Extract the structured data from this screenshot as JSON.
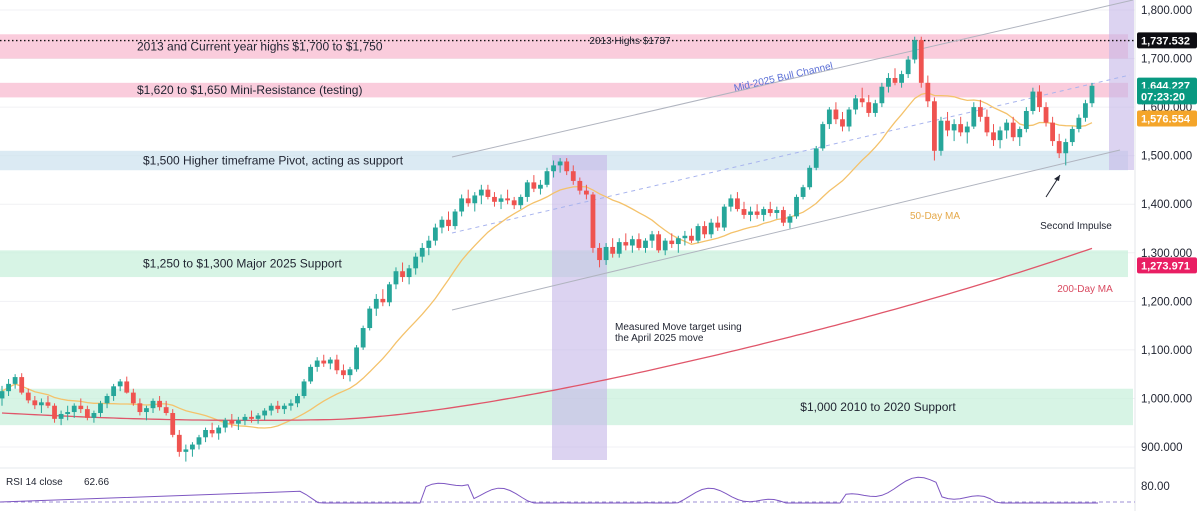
{
  "chart_data": {
    "type": "candlestick",
    "y_axis": {
      "range": [
        860,
        1820
      ],
      "ticks": [
        "1,800.000",
        "1,700.000",
        "1,600.000",
        "1,500.000",
        "1,400.000",
        "1,300.000",
        "1,200.000",
        "1,100.000",
        "1,000.000",
        "900.000"
      ],
      "tick_values": [
        1800,
        1700,
        1600,
        1500,
        1400,
        1300,
        1200,
        1100,
        1000,
        900
      ]
    },
    "price_badges": [
      {
        "text": "1,737.532",
        "value": 1737.532,
        "color": "#0d0d12"
      },
      {
        "text": "1,644.227",
        "value": 1644.227,
        "color": "#089981"
      },
      {
        "text": "07:23:20",
        "value": 1622,
        "color": "#089981"
      },
      {
        "text": "1,576.554",
        "value": 1576.554,
        "color": "#f4a52a"
      },
      {
        "text": "1,273.971",
        "value": 1273.971,
        "color": "#e91e63"
      }
    ],
    "zones": [
      {
        "label": "2013 and Current year highs $1,700 to $1,750",
        "from": 1700,
        "to": 1750,
        "color": "#f8bbd0"
      },
      {
        "label": "$1,620 to $1,650 Mini-Resistance (testing)",
        "from": 1620,
        "to": 1650,
        "color": "#f8bbd0"
      },
      {
        "label": "$1,500 Higher timeframe Pivot, acting as support",
        "from": 1470,
        "to": 1510,
        "color": "#cfe3ef"
      },
      {
        "label": "$1,250 to $1,300 Major 2025 Support",
        "from": 1250,
        "to": 1305,
        "color": "#c9f0dc"
      },
      {
        "label": "$1,000 2010 to 2020 Support",
        "from": 945,
        "to": 1020,
        "color": "#c9f0dc"
      }
    ],
    "highs_line": {
      "label": "2013 Highs $1737",
      "value": 1737
    },
    "annotations": {
      "channel": "Mid-2025 Bull Channel",
      "ma50": "50-Day MA",
      "ma200": "200-Day MA",
      "measured_move": [
        "Measured Move target using",
        "the April 2025 move"
      ],
      "second_impulse": "Second Impulse"
    },
    "indicator": {
      "label": "RSI 14 close",
      "value": "62.66",
      "tick": "80.00"
    },
    "colors": {
      "up": "#26a69a",
      "down": "#ef5350",
      "ma50": "#f4c26b",
      "ma200": "#e0566a",
      "projection": "#c4b5e8"
    },
    "candles": [
      [
        1000,
        1026,
        985,
        1015
      ],
      [
        1015,
        1040,
        1005,
        1030
      ],
      [
        1030,
        1050,
        1020,
        1044
      ],
      [
        1044,
        1052,
        1008,
        1012
      ],
      [
        1012,
        1020,
        990,
        996
      ],
      [
        996,
        1005,
        978,
        986
      ],
      [
        986,
        1000,
        970,
        992
      ],
      [
        992,
        1005,
        980,
        985
      ],
      [
        985,
        990,
        950,
        958
      ],
      [
        958,
        975,
        945,
        968
      ],
      [
        968,
        985,
        955,
        972
      ],
      [
        972,
        990,
        960,
        985
      ],
      [
        985,
        1000,
        970,
        978
      ],
      [
        978,
        985,
        955,
        960
      ],
      [
        960,
        975,
        950,
        970
      ],
      [
        970,
        995,
        962,
        990
      ],
      [
        990,
        1010,
        980,
        1005
      ],
      [
        1005,
        1030,
        995,
        1025
      ],
      [
        1025,
        1040,
        1015,
        1035
      ],
      [
        1035,
        1045,
        1010,
        1012
      ],
      [
        1012,
        1020,
        985,
        990
      ],
      [
        990,
        1000,
        965,
        972
      ],
      [
        972,
        985,
        955,
        980
      ],
      [
        980,
        1000,
        970,
        995
      ],
      [
        995,
        1005,
        975,
        982
      ],
      [
        982,
        995,
        965,
        970
      ],
      [
        970,
        978,
        920,
        925
      ],
      [
        925,
        935,
        880,
        890
      ],
      [
        890,
        905,
        870,
        895
      ],
      [
        895,
        910,
        880,
        905
      ],
      [
        905,
        925,
        895,
        920
      ],
      [
        920,
        940,
        910,
        935
      ],
      [
        935,
        950,
        920,
        928
      ],
      [
        928,
        945,
        915,
        940
      ],
      [
        940,
        960,
        930,
        955
      ],
      [
        955,
        968,
        940,
        948
      ],
      [
        948,
        962,
        935,
        955
      ],
      [
        955,
        968,
        945,
        962
      ],
      [
        962,
        975,
        950,
        958
      ],
      [
        958,
        970,
        948,
        965
      ],
      [
        965,
        980,
        955,
        975
      ],
      [
        975,
        990,
        965,
        985
      ],
      [
        985,
        995,
        970,
        978
      ],
      [
        978,
        990,
        968,
        985
      ],
      [
        985,
        998,
        975,
        990
      ],
      [
        990,
        1010,
        982,
        1005
      ],
      [
        1005,
        1040,
        1000,
        1035
      ],
      [
        1035,
        1070,
        1030,
        1065
      ],
      [
        1065,
        1085,
        1055,
        1078
      ],
      [
        1078,
        1090,
        1065,
        1072
      ],
      [
        1072,
        1085,
        1060,
        1080
      ],
      [
        1080,
        1090,
        1050,
        1058
      ],
      [
        1058,
        1070,
        1040,
        1048
      ],
      [
        1048,
        1065,
        1035,
        1060
      ],
      [
        1060,
        1110,
        1055,
        1105
      ],
      [
        1105,
        1150,
        1100,
        1145
      ],
      [
        1145,
        1190,
        1140,
        1185
      ],
      [
        1185,
        1215,
        1170,
        1205
      ],
      [
        1205,
        1225,
        1190,
        1198
      ],
      [
        1198,
        1240,
        1190,
        1235
      ],
      [
        1235,
        1270,
        1225,
        1262
      ],
      [
        1262,
        1280,
        1240,
        1250
      ],
      [
        1250,
        1275,
        1235,
        1268
      ],
      [
        1268,
        1300,
        1255,
        1292
      ],
      [
        1292,
        1320,
        1280,
        1310
      ],
      [
        1310,
        1335,
        1295,
        1325
      ],
      [
        1325,
        1360,
        1315,
        1352
      ],
      [
        1352,
        1375,
        1340,
        1368
      ],
      [
        1368,
        1385,
        1345,
        1355
      ],
      [
        1355,
        1390,
        1348,
        1385
      ],
      [
        1385,
        1420,
        1375,
        1412
      ],
      [
        1412,
        1430,
        1395,
        1402
      ],
      [
        1402,
        1425,
        1385,
        1418
      ],
      [
        1418,
        1440,
        1400,
        1430
      ],
      [
        1430,
        1440,
        1410,
        1415
      ],
      [
        1415,
        1425,
        1395,
        1405
      ],
      [
        1405,
        1420,
        1390,
        1412
      ],
      [
        1412,
        1430,
        1400,
        1408
      ],
      [
        1408,
        1415,
        1390,
        1398
      ],
      [
        1398,
        1420,
        1390,
        1415
      ],
      [
        1415,
        1450,
        1405,
        1445
      ],
      [
        1445,
        1460,
        1425,
        1432
      ],
      [
        1432,
        1450,
        1420,
        1440
      ],
      [
        1440,
        1475,
        1435,
        1468
      ],
      [
        1468,
        1490,
        1455,
        1480
      ],
      [
        1480,
        1495,
        1465,
        1488
      ],
      [
        1488,
        1495,
        1460,
        1468
      ],
      [
        1468,
        1480,
        1440,
        1448
      ],
      [
        1448,
        1455,
        1420,
        1428
      ],
      [
        1428,
        1440,
        1410,
        1420
      ],
      [
        1420,
        1425,
        1300,
        1310
      ],
      [
        1310,
        1320,
        1270,
        1285
      ],
      [
        1285,
        1320,
        1275,
        1312
      ],
      [
        1312,
        1330,
        1290,
        1298
      ],
      [
        1298,
        1330,
        1290,
        1322
      ],
      [
        1322,
        1340,
        1305,
        1315
      ],
      [
        1315,
        1335,
        1300,
        1328
      ],
      [
        1328,
        1340,
        1305,
        1310
      ],
      [
        1310,
        1330,
        1300,
        1325
      ],
      [
        1325,
        1345,
        1310,
        1338
      ],
      [
        1338,
        1345,
        1300,
        1305
      ],
      [
        1305,
        1330,
        1295,
        1325
      ],
      [
        1325,
        1340,
        1310,
        1318
      ],
      [
        1318,
        1335,
        1300,
        1330
      ],
      [
        1330,
        1345,
        1315,
        1335
      ],
      [
        1335,
        1350,
        1320,
        1325
      ],
      [
        1325,
        1360,
        1320,
        1355
      ],
      [
        1355,
        1365,
        1330,
        1338
      ],
      [
        1338,
        1370,
        1330,
        1362
      ],
      [
        1362,
        1375,
        1345,
        1352
      ],
      [
        1352,
        1400,
        1345,
        1395
      ],
      [
        1395,
        1420,
        1385,
        1412
      ],
      [
        1412,
        1425,
        1385,
        1390
      ],
      [
        1390,
        1405,
        1370,
        1378
      ],
      [
        1378,
        1395,
        1365,
        1385
      ],
      [
        1385,
        1400,
        1370,
        1378
      ],
      [
        1378,
        1395,
        1365,
        1390
      ],
      [
        1390,
        1405,
        1375,
        1382
      ],
      [
        1382,
        1395,
        1370,
        1388
      ],
      [
        1388,
        1395,
        1355,
        1362
      ],
      [
        1362,
        1380,
        1350,
        1375
      ],
      [
        1375,
        1420,
        1370,
        1415
      ],
      [
        1415,
        1440,
        1410,
        1435
      ],
      [
        1435,
        1480,
        1430,
        1475
      ],
      [
        1475,
        1520,
        1470,
        1515
      ],
      [
        1515,
        1570,
        1510,
        1565
      ],
      [
        1565,
        1600,
        1555,
        1595
      ],
      [
        1595,
        1610,
        1565,
        1575
      ],
      [
        1575,
        1590,
        1550,
        1560
      ],
      [
        1560,
        1600,
        1550,
        1595
      ],
      [
        1595,
        1625,
        1585,
        1618
      ],
      [
        1618,
        1640,
        1600,
        1610
      ],
      [
        1610,
        1625,
        1580,
        1588
      ],
      [
        1588,
        1615,
        1580,
        1608
      ],
      [
        1608,
        1650,
        1600,
        1642
      ],
      [
        1642,
        1670,
        1630,
        1660
      ],
      [
        1660,
        1680,
        1645,
        1650
      ],
      [
        1650,
        1675,
        1640,
        1668
      ],
      [
        1668,
        1705,
        1660,
        1698
      ],
      [
        1698,
        1745,
        1690,
        1738
      ],
      [
        1738,
        1745,
        1640,
        1650
      ],
      [
        1650,
        1665,
        1600,
        1612
      ],
      [
        1612,
        1620,
        1490,
        1510
      ],
      [
        1510,
        1580,
        1500,
        1572
      ],
      [
        1572,
        1590,
        1540,
        1552
      ],
      [
        1552,
        1575,
        1530,
        1565
      ],
      [
        1565,
        1580,
        1540,
        1548
      ],
      [
        1548,
        1570,
        1525,
        1560
      ],
      [
        1560,
        1610,
        1555,
        1600
      ],
      [
        1600,
        1615,
        1570,
        1580
      ],
      [
        1580,
        1595,
        1540,
        1548
      ],
      [
        1548,
        1565,
        1520,
        1532
      ],
      [
        1532,
        1560,
        1515,
        1552
      ],
      [
        1552,
        1575,
        1535,
        1568
      ],
      [
        1568,
        1580,
        1530,
        1538
      ],
      [
        1538,
        1560,
        1520,
        1555
      ],
      [
        1555,
        1600,
        1548,
        1592
      ],
      [
        1592,
        1640,
        1585,
        1632
      ],
      [
        1632,
        1645,
        1590,
        1600
      ],
      [
        1600,
        1610,
        1560,
        1568
      ],
      [
        1568,
        1580,
        1520,
        1530
      ],
      [
        1530,
        1545,
        1495,
        1505
      ],
      [
        1505,
        1535,
        1480,
        1528
      ],
      [
        1528,
        1560,
        1520,
        1555
      ],
      [
        1555,
        1585,
        1548,
        1578
      ],
      [
        1578,
        1615,
        1570,
        1608
      ],
      [
        1608,
        1650,
        1600,
        1644
      ]
    ]
  }
}
